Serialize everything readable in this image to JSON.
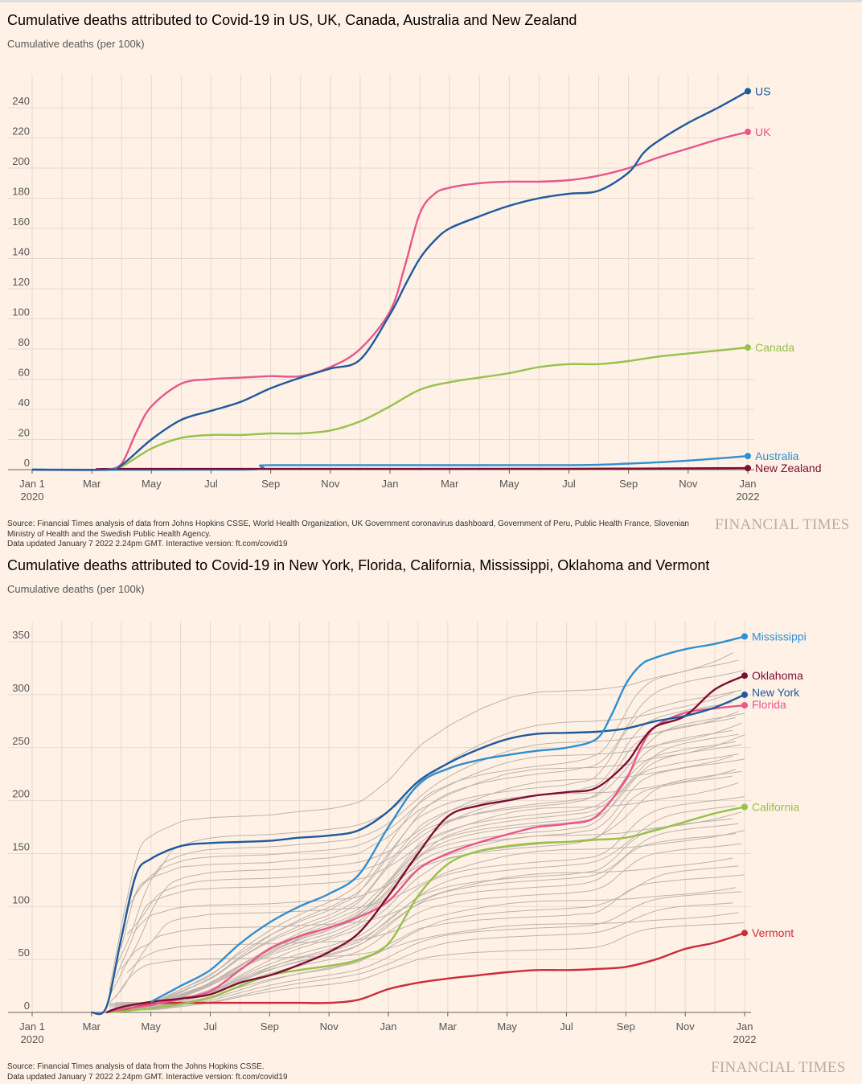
{
  "chart_data": [
    {
      "type": "line",
      "title": "Cumulative deaths attributed to Covid-19 in US, UK, Canada, Australia and New Zealand",
      "ylabel": "Cumulative deaths (per 100k)",
      "ylim": [
        0,
        250
      ],
      "yticks": [
        0,
        20,
        40,
        60,
        80,
        100,
        120,
        140,
        160,
        180,
        200,
        220,
        240
      ],
      "x_unit": "months since Jan 1 2020",
      "xlim": [
        0,
        24
      ],
      "xticks": [
        {
          "m": 0,
          "l1": "Jan 1",
          "l2": "2020"
        },
        {
          "m": 2,
          "l1": "Mar"
        },
        {
          "m": 4,
          "l1": "May"
        },
        {
          "m": 6,
          "l1": "Jul"
        },
        {
          "m": 8,
          "l1": "Sep"
        },
        {
          "m": 10,
          "l1": "Nov"
        },
        {
          "m": 12,
          "l1": "Jan"
        },
        {
          "m": 14,
          "l1": "Mar"
        },
        {
          "m": 16,
          "l1": "May"
        },
        {
          "m": 18,
          "l1": "Jul"
        },
        {
          "m": 20,
          "l1": "Sep"
        },
        {
          "m": 22,
          "l1": "Nov"
        },
        {
          "m": 24,
          "l1": "Jan",
          "l2": "2022"
        }
      ],
      "series": [
        {
          "name": "Canada",
          "color": "#96c24a",
          "x": [
            2.5,
            3,
            4,
            5,
            6,
            7,
            8,
            9,
            10,
            11,
            12,
            13,
            14,
            15,
            16,
            17,
            18,
            19,
            20,
            21,
            22,
            23,
            24
          ],
          "values": [
            0,
            2,
            14,
            21,
            23,
            23,
            24,
            24,
            26,
            32,
            42,
            53,
            58,
            61,
            64,
            68,
            70,
            70,
            72,
            75,
            77,
            79,
            81
          ]
        },
        {
          "name": "Australia",
          "color": "#2e8fd1",
          "x": [
            0,
            7,
            7.7,
            8,
            12,
            18,
            20,
            22,
            24
          ],
          "values": [
            0,
            0,
            2,
            3,
            3,
            3,
            4,
            6,
            9
          ]
        },
        {
          "name": "New Zealand",
          "color": "#7d0e33",
          "x": [
            2.5,
            3,
            12,
            18,
            24
          ],
          "values": [
            0,
            0.5,
            0.5,
            0.6,
            1
          ]
        },
        {
          "name": "UK",
          "color": "#e8568b",
          "x": [
            2.5,
            3,
            3.5,
            4,
            5,
            6,
            7,
            8,
            9,
            10,
            11,
            12,
            12.5,
            13,
            13.5,
            14,
            15,
            16,
            17,
            18,
            19,
            20,
            21,
            22,
            23,
            24
          ],
          "values": [
            0,
            4,
            25,
            42,
            57,
            60,
            61,
            62,
            62,
            68,
            80,
            105,
            135,
            170,
            183,
            187,
            190,
            191,
            191,
            192,
            195,
            200,
            207,
            213,
            219,
            224
          ]
        },
        {
          "name": "US",
          "color": "#1f5a9e",
          "x": [
            0,
            2.5,
            3,
            4,
            5,
            6,
            7,
            8,
            9,
            10,
            11,
            12,
            12.5,
            13,
            13.5,
            14,
            15,
            16,
            17,
            18,
            19,
            20,
            20.5,
            21,
            22,
            23,
            24
          ],
          "values": [
            0,
            0,
            3,
            20,
            33,
            39,
            45,
            54,
            61,
            67,
            73,
            103,
            122,
            140,
            152,
            160,
            168,
            175,
            180,
            183,
            185,
            197,
            210,
            218,
            230,
            240,
            251
          ]
        }
      ]
    },
    {
      "type": "line",
      "title": "Cumulative deaths attributed to Covid-19 in New York, Florida, California, Mississippi, Oklahoma and Vermont",
      "ylabel": "Cumulative deaths (per 100k)",
      "ylim": [
        0,
        355
      ],
      "yticks": [
        0,
        50,
        100,
        150,
        200,
        250,
        300,
        350
      ],
      "xlim": [
        0,
        24
      ],
      "xticks": [
        {
          "m": 0,
          "l1": "Jan 1",
          "l2": "2020"
        },
        {
          "m": 2,
          "l1": "Mar"
        },
        {
          "m": 4,
          "l1": "May"
        },
        {
          "m": 6,
          "l1": "Jul"
        },
        {
          "m": 8,
          "l1": "Sep"
        },
        {
          "m": 10,
          "l1": "Nov"
        },
        {
          "m": 12,
          "l1": "Jan"
        },
        {
          "m": 14,
          "l1": "Mar"
        },
        {
          "m": 16,
          "l1": "May"
        },
        {
          "m": 18,
          "l1": "Jul"
        },
        {
          "m": 20,
          "l1": "Sep"
        },
        {
          "m": 22,
          "l1": "Nov"
        },
        {
          "m": 24,
          "l1": "Jan",
          "l2": "2022"
        }
      ],
      "other_states_final_values": [
        345,
        335,
        325,
        312,
        305,
        296,
        290,
        285,
        280,
        276,
        270,
        266,
        262,
        258,
        255,
        250,
        245,
        240,
        235,
        230,
        225,
        220,
        205,
        198,
        190,
        185,
        180,
        175,
        170,
        160,
        150,
        140,
        130,
        120,
        115,
        105,
        95,
        85
      ],
      "other_states_color": "#bdb3ab",
      "series": [
        {
          "name": "Vermont",
          "color": "#cc2b3b",
          "x": [
            2.5,
            3,
            4,
            5,
            6,
            7,
            8,
            9,
            10,
            11,
            12,
            13,
            14,
            15,
            16,
            17,
            18,
            19,
            20,
            21,
            22,
            23,
            24
          ],
          "values": [
            0,
            2,
            8,
            9,
            9,
            9,
            9,
            9,
            9,
            12,
            22,
            28,
            32,
            35,
            38,
            40,
            40,
            41,
            43,
            50,
            60,
            66,
            75
          ]
        },
        {
          "name": "California",
          "color": "#96c24a",
          "x": [
            2.5,
            3,
            4,
            5,
            6,
            7,
            8,
            9,
            10,
            11,
            12,
            13,
            14,
            15,
            16,
            17,
            18,
            19,
            20,
            21,
            22,
            23,
            24
          ],
          "values": [
            0,
            1,
            4,
            8,
            14,
            25,
            35,
            40,
            44,
            50,
            65,
            110,
            140,
            152,
            157,
            160,
            161,
            163,
            165,
            172,
            180,
            188,
            194
          ]
        },
        {
          "name": "Florida",
          "color": "#e8568b",
          "x": [
            2.5,
            3,
            4,
            5,
            6,
            7,
            8,
            9,
            10,
            11,
            12,
            13,
            14,
            15,
            16,
            17,
            18,
            19,
            20,
            20.5,
            21,
            22,
            23,
            24
          ],
          "values": [
            0,
            3,
            7,
            13,
            20,
            40,
            60,
            72,
            80,
            90,
            105,
            135,
            150,
            160,
            168,
            175,
            178,
            185,
            220,
            250,
            270,
            283,
            287,
            290
          ]
        },
        {
          "name": "Oklahoma",
          "color": "#7d0e33",
          "x": [
            2.5,
            3,
            4,
            5,
            6,
            7,
            8,
            9,
            10,
            11,
            12,
            13,
            14,
            15,
            16,
            17,
            18,
            19,
            20,
            20.5,
            21,
            22,
            23,
            24
          ],
          "values": [
            0,
            5,
            10,
            13,
            17,
            28,
            35,
            45,
            57,
            75,
            110,
            150,
            185,
            195,
            200,
            205,
            208,
            212,
            235,
            255,
            270,
            280,
            305,
            318
          ]
        },
        {
          "name": "New York",
          "color": "#1f5a9e",
          "x": [
            2,
            2.5,
            3,
            3.5,
            4,
            5,
            6,
            7,
            8,
            9,
            10,
            11,
            12,
            13,
            14,
            15,
            16,
            17,
            18,
            19,
            20,
            21,
            22,
            23,
            24
          ],
          "values": [
            0,
            5,
            70,
            130,
            145,
            157,
            160,
            161,
            162,
            165,
            167,
            172,
            190,
            218,
            235,
            248,
            258,
            263,
            264,
            265,
            268,
            275,
            280,
            288,
            300
          ]
        },
        {
          "name": "Mississippi",
          "color": "#2e8fd1",
          "x": [
            4,
            5,
            6,
            7,
            8,
            9,
            10,
            11,
            12,
            13,
            14,
            15,
            16,
            17,
            18,
            19,
            19.5,
            20,
            20.5,
            21,
            22,
            23,
            24
          ],
          "values": [
            10,
            25,
            40,
            65,
            85,
            100,
            112,
            130,
            175,
            215,
            230,
            238,
            243,
            247,
            250,
            258,
            280,
            310,
            328,
            335,
            343,
            348,
            355
          ]
        }
      ]
    }
  ],
  "charts": [
    {
      "title": "Cumulative deaths attributed to Covid-19 in US, UK, Canada, Australia and New Zealand",
      "subtitle": "Cumulative deaths (per 100k)",
      "source": "Source: Financial Times analysis of data from Johns Hopkins CSSE, World Health Organization, UK Government coronavirus dashboard, Government of Peru, Public Health France, Slovenian Ministry of Health and the Swedish Public Health Agency.",
      "updated": "Data updated January 7 2022 2.24pm GMT. Interactive version: ft.com/covid19",
      "brand": "FINANCIAL TIMES"
    },
    {
      "title": "Cumulative deaths attributed to Covid-19 in New York, Florida, California, Mississippi, Oklahoma and Vermont",
      "subtitle": "Cumulative deaths (per 100k)",
      "source": "Source: Financial Times analysis of data from the Johns Hopkins CSSE.",
      "updated": "Data updated January 7 2022 2.24pm GMT. Interactive version: ft.com/covid19",
      "brand": "FINANCIAL TIMES"
    }
  ]
}
